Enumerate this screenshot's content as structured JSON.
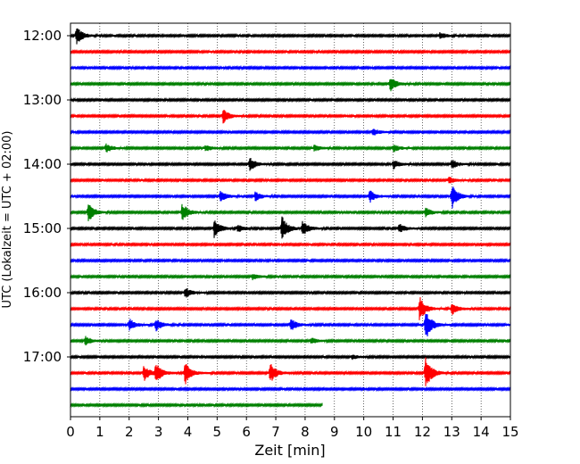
{
  "chart_data": {
    "type": "line",
    "subtype": "helicorder",
    "title": "",
    "xlabel": "Zeit  [min]",
    "ylabel": "UTC (Lokalzeit = UTC + 02:00)",
    "xlim": [
      0,
      15
    ],
    "x_ticks": [
      0,
      1,
      2,
      3,
      4,
      5,
      6,
      7,
      8,
      9,
      10,
      11,
      12,
      13,
      14,
      15
    ],
    "x_tick_labels": [
      "0",
      "1",
      "2",
      "3",
      "4",
      "5",
      "6",
      "7",
      "8",
      "9",
      "10",
      "11",
      "12",
      "13",
      "14",
      "15"
    ],
    "y_tick_labels": [
      "12:00",
      "13:00",
      "14:00",
      "15:00",
      "16:00",
      "17:00"
    ],
    "y_tick_rows": [
      0,
      4,
      8,
      12,
      16,
      20
    ],
    "trace_interval_min": 15,
    "grid": "vertical dotted",
    "colors": [
      "#000000",
      "#ff0000",
      "#0000ff",
      "#008000"
    ],
    "traces": [
      {
        "start": "12:00",
        "color": "#000000",
        "end_min": 15,
        "events": [
          {
            "t": 0.2,
            "amp": 1.2
          },
          {
            "t": 12.6,
            "amp": 0.4
          }
        ]
      },
      {
        "start": "12:15",
        "color": "#ff0000",
        "end_min": 15,
        "events": []
      },
      {
        "start": "12:30",
        "color": "#0000ff",
        "end_min": 15,
        "events": []
      },
      {
        "start": "12:45",
        "color": "#008000",
        "end_min": 15,
        "events": [
          {
            "t": 10.9,
            "amp": 1.0
          }
        ]
      },
      {
        "start": "13:00",
        "color": "#000000",
        "end_min": 15,
        "events": []
      },
      {
        "start": "13:15",
        "color": "#ff0000",
        "end_min": 15,
        "events": [
          {
            "t": 5.2,
            "amp": 0.9
          }
        ]
      },
      {
        "start": "13:30",
        "color": "#0000ff",
        "end_min": 15,
        "events": [
          {
            "t": 10.3,
            "amp": 0.5
          }
        ]
      },
      {
        "start": "13:45",
        "color": "#008000",
        "end_min": 15,
        "events": [
          {
            "t": 1.2,
            "amp": 0.6
          },
          {
            "t": 4.6,
            "amp": 0.4
          },
          {
            "t": 8.3,
            "amp": 0.4
          },
          {
            "t": 11.0,
            "amp": 0.5
          }
        ]
      },
      {
        "start": "14:00",
        "color": "#000000",
        "end_min": 15,
        "events": [
          {
            "t": 6.1,
            "amp": 0.9
          },
          {
            "t": 11.0,
            "amp": 0.6
          },
          {
            "t": 13.0,
            "amp": 0.6
          }
        ]
      },
      {
        "start": "14:15",
        "color": "#ff0000",
        "end_min": 15,
        "events": [
          {
            "t": 12.9,
            "amp": 0.4
          }
        ]
      },
      {
        "start": "14:30",
        "color": "#0000ff",
        "end_min": 15,
        "events": [
          {
            "t": 5.1,
            "amp": 0.7
          },
          {
            "t": 6.3,
            "amp": 0.6
          },
          {
            "t": 10.2,
            "amp": 0.8
          },
          {
            "t": 13.0,
            "amp": 1.6
          }
        ]
      },
      {
        "start": "14:45",
        "color": "#008000",
        "end_min": 15,
        "events": [
          {
            "t": 0.6,
            "amp": 1.3
          },
          {
            "t": 3.8,
            "amp": 1.2
          },
          {
            "t": 12.1,
            "amp": 0.6
          }
        ]
      },
      {
        "start": "15:00",
        "color": "#000000",
        "end_min": 15,
        "events": [
          {
            "t": 4.9,
            "amp": 1.2
          },
          {
            "t": 5.7,
            "amp": 0.5
          },
          {
            "t": 7.2,
            "amp": 1.6
          },
          {
            "t": 7.9,
            "amp": 1.0
          },
          {
            "t": 11.2,
            "amp": 0.6
          }
        ]
      },
      {
        "start": "15:15",
        "color": "#ff0000",
        "end_min": 15,
        "events": []
      },
      {
        "start": "15:30",
        "color": "#0000ff",
        "end_min": 15,
        "events": []
      },
      {
        "start": "15:45",
        "color": "#008000",
        "end_min": 15,
        "events": [
          {
            "t": 6.2,
            "amp": 0.4
          }
        ]
      },
      {
        "start": "16:00",
        "color": "#000000",
        "end_min": 15,
        "events": [
          {
            "t": 3.9,
            "amp": 0.7
          }
        ]
      },
      {
        "start": "16:15",
        "color": "#ff0000",
        "end_min": 15,
        "events": [
          {
            "t": 11.9,
            "amp": 1.6
          },
          {
            "t": 13.0,
            "amp": 0.8
          }
        ]
      },
      {
        "start": "16:30",
        "color": "#0000ff",
        "end_min": 15,
        "events": [
          {
            "t": 2.0,
            "amp": 0.8
          },
          {
            "t": 2.9,
            "amp": 0.8
          },
          {
            "t": 7.5,
            "amp": 0.8
          },
          {
            "t": 12.1,
            "amp": 2.0
          }
        ]
      },
      {
        "start": "16:45",
        "color": "#008000",
        "end_min": 15,
        "events": [
          {
            "t": 0.5,
            "amp": 0.6
          },
          {
            "t": 8.2,
            "amp": 0.4
          }
        ]
      },
      {
        "start": "17:00",
        "color": "#000000",
        "end_min": 15,
        "events": [
          {
            "t": 9.6,
            "amp": 0.3
          }
        ]
      },
      {
        "start": "17:15",
        "color": "#ff0000",
        "end_min": 15,
        "events": [
          {
            "t": 2.5,
            "amp": 1.0
          },
          {
            "t": 2.9,
            "amp": 1.3
          },
          {
            "t": 3.9,
            "amp": 1.5
          },
          {
            "t": 6.8,
            "amp": 1.3
          },
          {
            "t": 12.1,
            "amp": 2.2
          }
        ]
      },
      {
        "start": "17:30",
        "color": "#0000ff",
        "end_min": 15,
        "events": []
      },
      {
        "start": "17:45",
        "color": "#008000",
        "end_min": 8.6,
        "events": []
      }
    ]
  }
}
